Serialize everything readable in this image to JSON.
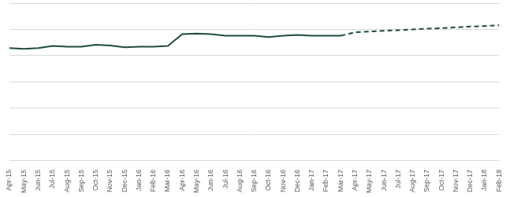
{
  "chart_data": {
    "type": "line",
    "categories": [
      "Apr-15",
      "May-15",
      "Jun-15",
      "Jul-15",
      "Aug-15",
      "Sep-15",
      "Oct-15",
      "Nov-15",
      "Dec-15",
      "Jan-16",
      "Feb-16",
      "Mar-16",
      "Apr-16",
      "May-16",
      "Jun-16",
      "Jul-16",
      "Aug-16",
      "Sep-16",
      "Oct-16",
      "Nov-16",
      "Dec-16",
      "Jan-17",
      "Feb-17",
      "Mar-17",
      "Apr-17",
      "May-17",
      "Jun-17",
      "Jul-17",
      "Aug-17",
      "Sep-17",
      "Oct-17",
      "Nov-17",
      "Dec-17",
      "Jan-18",
      "Feb-18"
    ],
    "series": [
      {
        "color": "#1e4d36",
        "line_style": "solid",
        "values": [
          4.29,
          4.26,
          4.29,
          4.37,
          4.34,
          4.34,
          4.42,
          4.39,
          4.32,
          4.34,
          4.34,
          4.37,
          4.82,
          4.84,
          4.82,
          4.76,
          4.76,
          4.76,
          4.71,
          4.76,
          4.79,
          4.76,
          4.76,
          4.76,
          null,
          null,
          null,
          null,
          null,
          null,
          null,
          null,
          null,
          null,
          null
        ]
      },
      {
        "color": "#1e4d36",
        "line_style": "dashed",
        "values": [
          null,
          null,
          null,
          null,
          null,
          null,
          null,
          null,
          null,
          null,
          null,
          null,
          null,
          null,
          null,
          null,
          null,
          null,
          null,
          null,
          null,
          null,
          null,
          4.76,
          4.89,
          4.92,
          4.95,
          4.97,
          5.0,
          5.03,
          5.05,
          5.08,
          5.11,
          5.13,
          5.16
        ]
      }
    ],
    "ylim": [
      0,
      6
    ],
    "yticks": [
      0,
      1,
      2,
      3,
      4,
      5,
      6
    ],
    "grid": true,
    "tick_labels": "x"
  }
}
